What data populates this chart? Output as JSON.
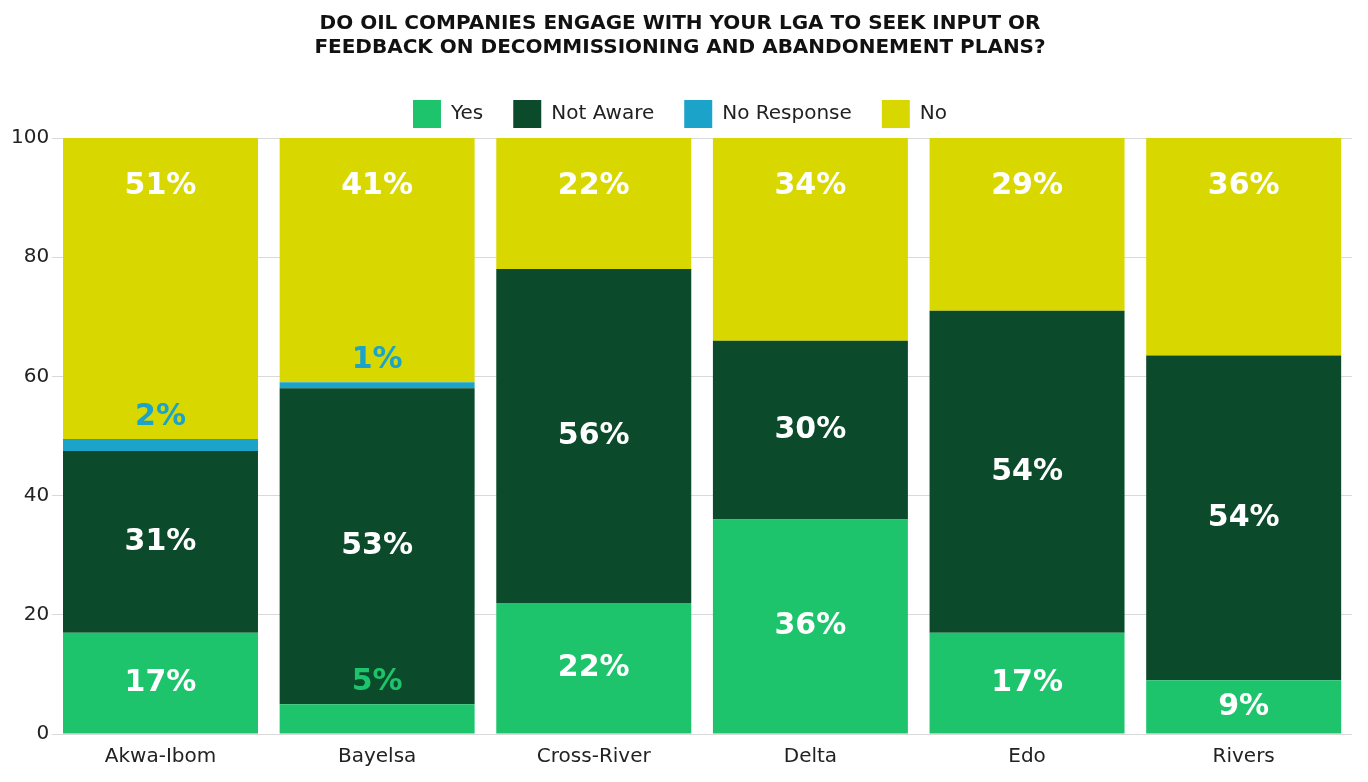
{
  "chart_data": {
    "type": "bar",
    "title": "DO OIL COMPANIES ENGAGE WITH YOUR LGA TO SEEK INPUT OR\nFEEDBACK ON DECOMMISSIONING AND ABANDONEMENT PLANS?",
    "categories": [
      "Akwa-Ibom",
      "Bayelsa",
      "Cross-River",
      "Delta",
      "Edo",
      "Rivers"
    ],
    "stacked": true,
    "ylim": [
      0,
      100
    ],
    "yticks": [
      0,
      20,
      40,
      60,
      80,
      100
    ],
    "grid": "y",
    "legend": "top",
    "series": [
      {
        "name": "Yes",
        "color": "#1dc46c",
        "values": [
          17,
          5,
          22,
          36,
          17,
          9
        ],
        "value_labels": [
          "17%",
          "5%",
          "22%",
          "36%",
          "17%",
          "9%"
        ]
      },
      {
        "name": "Not Aware",
        "color": "#0b4a2a",
        "values": [
          30.5,
          53,
          56,
          30,
          54,
          54.5
        ],
        "value_labels": [
          "31%",
          "53%",
          "56%",
          "30%",
          "54%",
          "54%"
        ]
      },
      {
        "name": "No Response",
        "color": "#1ba3c9",
        "values": [
          2,
          1,
          null,
          null,
          null,
          null
        ],
        "value_labels": [
          "2%",
          "1%",
          null,
          null,
          null,
          null
        ]
      },
      {
        "name": "No",
        "color": "#d8d800",
        "values": [
          50.5,
          41,
          22,
          34,
          29,
          36.5
        ],
        "value_labels": [
          "51%",
          "41%",
          "22%",
          "34%",
          "29%",
          "36%"
        ]
      }
    ]
  }
}
